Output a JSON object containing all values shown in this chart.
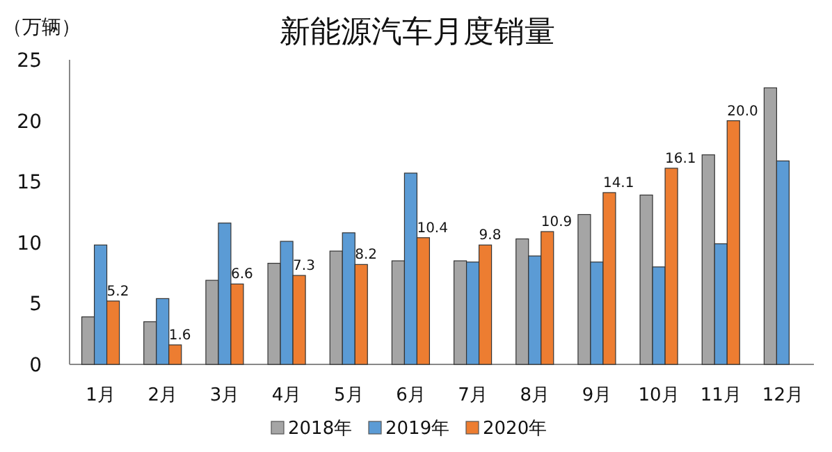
{
  "chart_data": {
    "type": "bar",
    "title": "新能源汽车月度销量",
    "ylabel": "（万辆）",
    "categories": [
      "1月",
      "2月",
      "3月",
      "4月",
      "5月",
      "6月",
      "7月",
      "8月",
      "9月",
      "10月",
      "11月",
      "12月"
    ],
    "series": [
      {
        "name": "2018年",
        "color": "#a5a5a5",
        "values": [
          3.9,
          3.5,
          6.9,
          8.3,
          9.3,
          8.5,
          8.5,
          10.3,
          12.3,
          13.9,
          17.2,
          22.7
        ]
      },
      {
        "name": "2019年",
        "color": "#5b9bd5",
        "values": [
          9.8,
          5.4,
          11.6,
          10.1,
          10.8,
          15.7,
          8.4,
          8.9,
          8.4,
          8.0,
          9.9,
          16.7
        ]
      },
      {
        "name": "2020年",
        "color": "#ed7d31",
        "values": [
          5.2,
          1.6,
          6.6,
          7.3,
          8.2,
          10.4,
          9.8,
          10.9,
          14.1,
          16.1,
          20.0,
          null
        ],
        "value_labels": [
          "5.2",
          "1.6",
          "6.6",
          "7.3",
          "8.2",
          "10.4",
          "9.8",
          "10.9",
          "14.1",
          "16.1",
          "20.0",
          null
        ]
      }
    ],
    "ylim": [
      0,
      25
    ],
    "yticks": [
      0,
      5,
      10,
      15,
      20,
      25
    ],
    "legend": "bottom"
  }
}
